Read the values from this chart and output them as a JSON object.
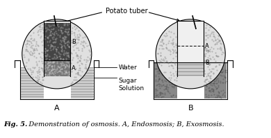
{
  "title": "Potato tuber",
  "fig_caption_bold": "Fig. 5.",
  "fig_caption_italic": "   Demonstration of osmosis. A, Endosmosis; B, Exosmosis.",
  "water_label": "Water",
  "sugar_label": "Sugar\nSolution",
  "bg_color": "#ffffff",
  "line_color": "#000000",
  "potato_stipple_color": "#aaaaaa",
  "dark_sugar_color": "#555555",
  "water_hatch_color": "#bbbbbb",
  "beaker_sugar_color": "#999999"
}
